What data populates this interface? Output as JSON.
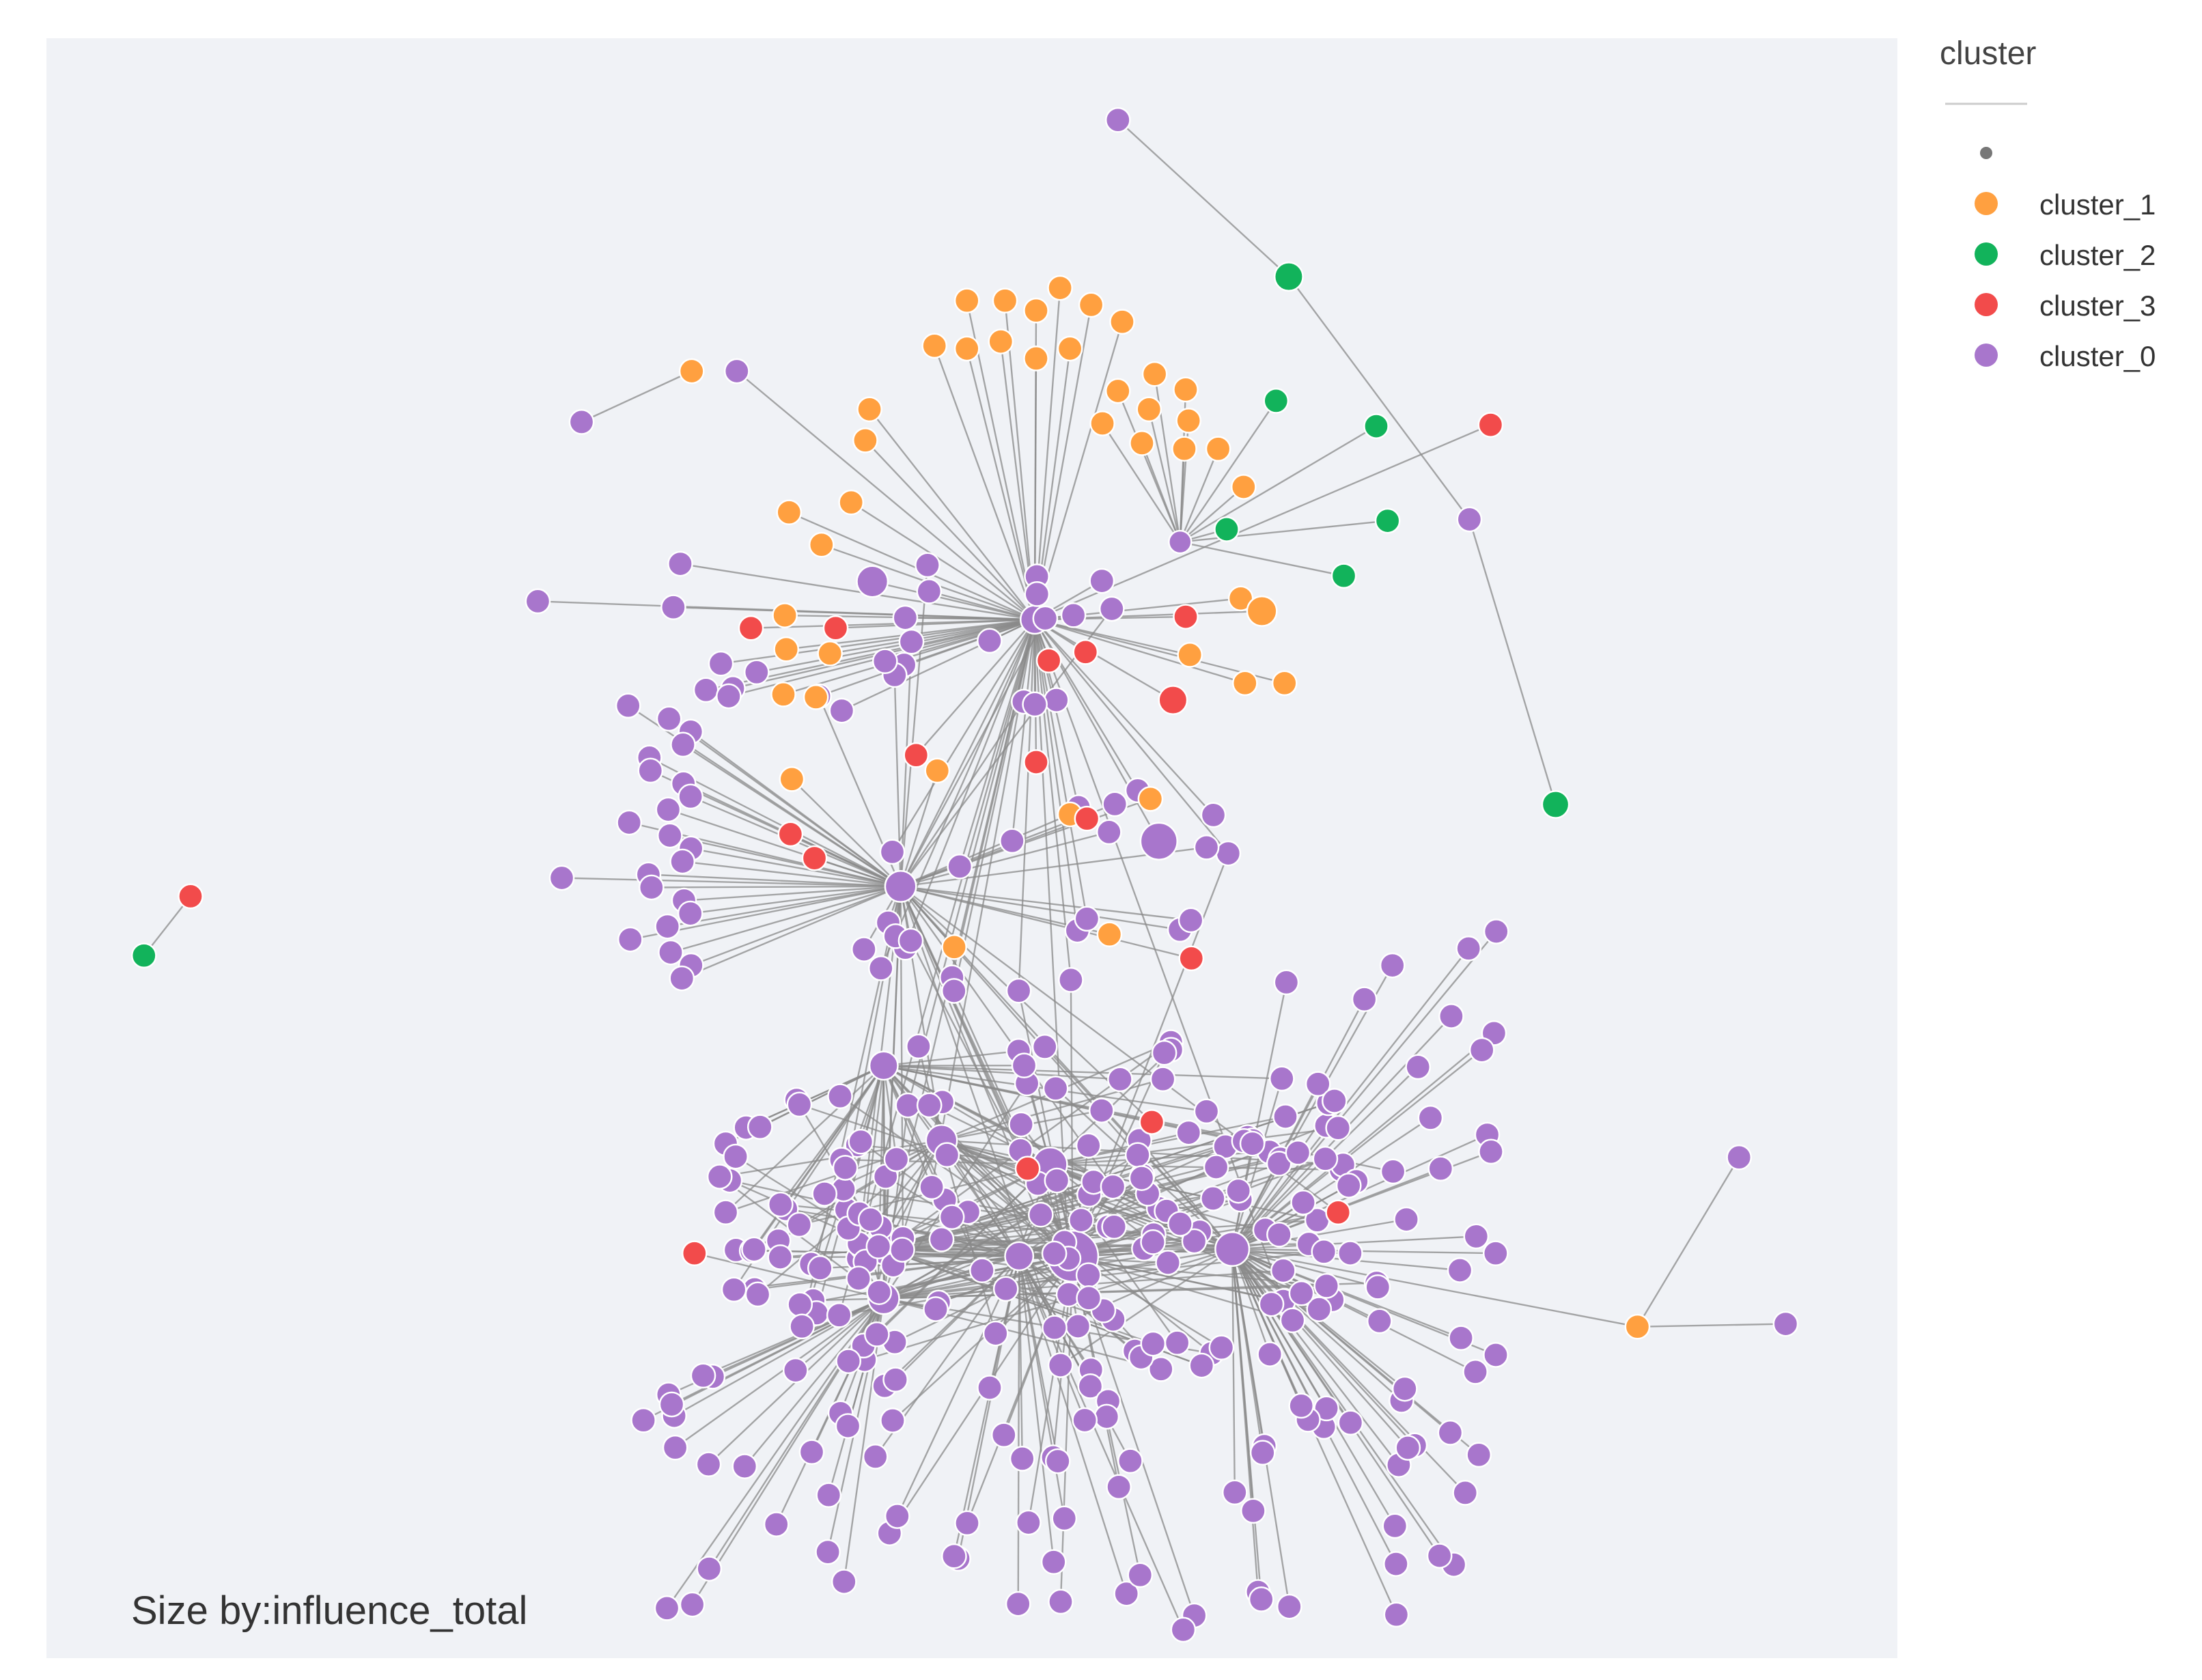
{
  "annotation": "Size by:influence_total",
  "legend": {
    "title": "cluster",
    "items": [
      {
        "label": "",
        "color": "#777777"
      },
      {
        "label": "cluster_1",
        "color": "#FFA040"
      },
      {
        "label": "cluster_2",
        "color": "#12B35B"
      },
      {
        "label": "cluster_3",
        "color": "#F24B4B"
      },
      {
        "label": "cluster_0",
        "color": "#A876CC"
      }
    ]
  },
  "colors": {
    "plot_background": "#F0F2F6",
    "edge": "#8A8A8A",
    "cluster_0": "#A876CC",
    "cluster_1": "#FFA040",
    "cluster_2": "#12B35B",
    "cluster_3": "#F24B4B"
  }
}
